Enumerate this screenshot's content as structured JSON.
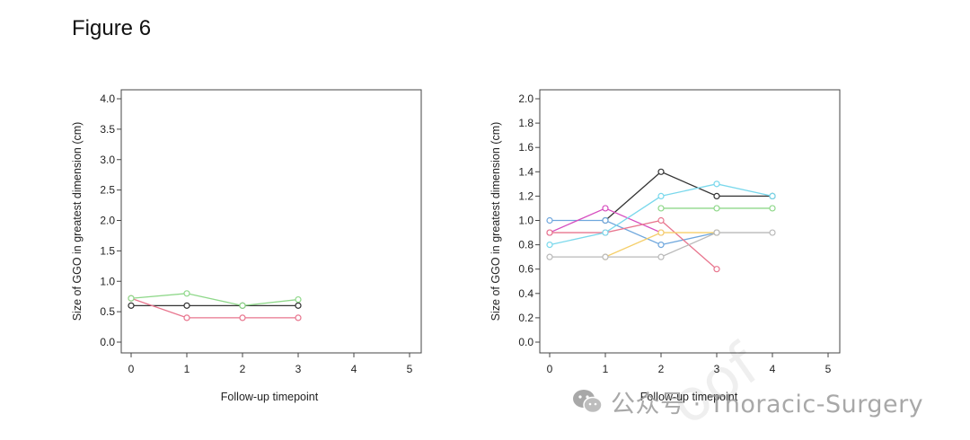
{
  "figure": {
    "title": "Figure 6"
  },
  "watermark": {
    "icon": "wechat-icon",
    "text": "公众号 · Thoracic-Surgery",
    "faint_text": "oof"
  },
  "colors": {
    "black": "#333333",
    "red": "#e8758e",
    "green": "#8fd88a",
    "blue": "#6fa7dd",
    "magenta": "#d64dbf",
    "cyan": "#7ad8ec",
    "yellow": "#f5cf6a",
    "gray": "#b9b9b9",
    "orange": "#f0a070"
  },
  "chart_data": [
    {
      "type": "line",
      "xlabel": "Follow-up timepoint",
      "ylabel": "Size of GGO in greatest dimension (cm)",
      "xlim": [
        0,
        5
      ],
      "ylim": [
        0.0,
        4.0
      ],
      "xticks": [
        "0",
        "1",
        "2",
        "3",
        "4",
        "5"
      ],
      "yticks": [
        "0.0",
        "0.5",
        "1.0",
        "1.5",
        "2.0",
        "2.5",
        "3.0",
        "3.5",
        "4.0"
      ],
      "grid": false,
      "series": [
        {
          "color": "#333333",
          "x": [
            0,
            1,
            2,
            3
          ],
          "y": [
            0.6,
            0.6,
            0.6,
            0.6
          ]
        },
        {
          "color": "#e8758e",
          "x": [
            0,
            1,
            2,
            3
          ],
          "y": [
            0.72,
            0.4,
            0.4,
            0.4
          ]
        },
        {
          "color": "#8fd88a",
          "x": [
            0,
            1,
            2,
            3
          ],
          "y": [
            0.72,
            0.8,
            0.6,
            0.7
          ]
        }
      ]
    },
    {
      "type": "line",
      "xlabel": "Follow-up timepoint",
      "ylabel": "Size of GGO in greatest dimension (cm)",
      "xlim": [
        0,
        5
      ],
      "ylim": [
        0.0,
        2.0
      ],
      "xticks": [
        "0",
        "1",
        "2",
        "3",
        "4",
        "5"
      ],
      "yticks": [
        "0.0",
        "0.2",
        "0.4",
        "0.6",
        "0.8",
        "1.0",
        "1.2",
        "1.4",
        "1.6",
        "1.8",
        "2.0"
      ],
      "grid": false,
      "series": [
        {
          "color": "#333333",
          "x": [
            1,
            2,
            3,
            4
          ],
          "y": [
            1.0,
            1.4,
            1.2,
            1.2
          ]
        },
        {
          "color": "#6fa7dd",
          "x": [
            0,
            1,
            2,
            3
          ],
          "y": [
            1.0,
            1.0,
            0.8,
            0.9
          ]
        },
        {
          "color": "#d64dbf",
          "x": [
            0,
            1,
            2
          ],
          "y": [
            0.9,
            1.1,
            0.9
          ]
        },
        {
          "color": "#e8758e",
          "x": [
            0,
            1,
            2,
            3
          ],
          "y": [
            0.9,
            0.9,
            1.0,
            0.6
          ]
        },
        {
          "color": "#7ad8ec",
          "x": [
            0,
            1,
            2,
            3,
            4
          ],
          "y": [
            0.8,
            0.9,
            1.2,
            1.3,
            1.2
          ]
        },
        {
          "color": "#8fd88a",
          "x": [
            2,
            3,
            4
          ],
          "y": [
            1.1,
            1.1,
            1.1
          ]
        },
        {
          "color": "#f5cf6a",
          "x": [
            1,
            2,
            3
          ],
          "y": [
            0.7,
            0.9,
            0.9
          ]
        },
        {
          "color": "#b9b9b9",
          "x": [
            0,
            1,
            2,
            3,
            4
          ],
          "y": [
            0.7,
            0.7,
            0.7,
            0.9,
            0.9
          ]
        }
      ]
    }
  ]
}
